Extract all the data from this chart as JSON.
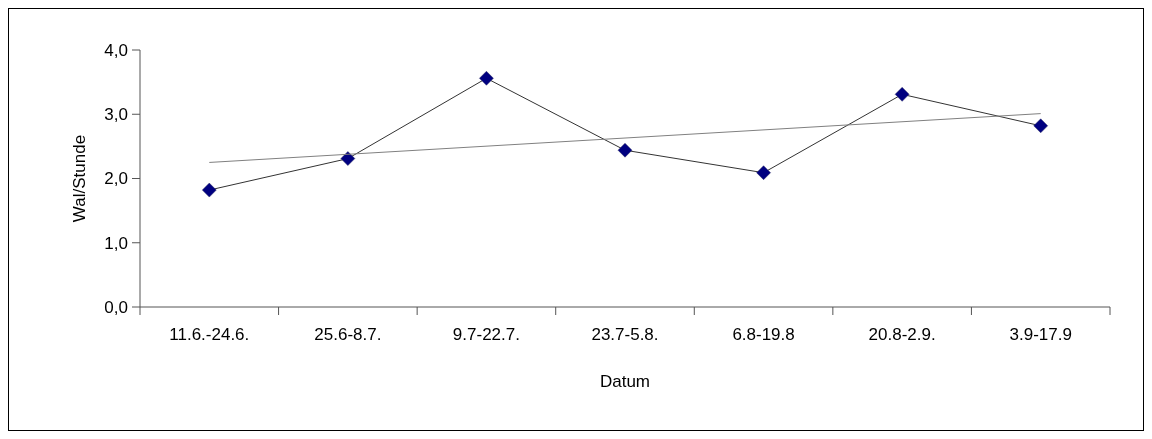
{
  "chart_data": {
    "type": "line",
    "xlabel": "Datum",
    "ylabel": "Wal/Stunde",
    "categories": [
      "11.6.-24.6.",
      "25.6-8.7.",
      "9.7-22.7.",
      "23.7-5.8.",
      "6.8-19.8",
      "20.8-2.9.",
      "3.9-17.9"
    ],
    "series": [
      {
        "color": "#000080",
        "marker": "diamond",
        "values": [
          1.82,
          2.31,
          3.56,
          2.44,
          2.09,
          3.31,
          2.82
        ]
      },
      {
        "color": "#808080",
        "marker": "none",
        "x": [
          "11.6.-24.6.",
          "3.9-17.9"
        ],
        "values": [
          2.25,
          3.01
        ]
      }
    ],
    "ylim": [
      0,
      4
    ],
    "yticks": [
      {
        "value": 0,
        "label": "0,0"
      },
      {
        "value": 1,
        "label": "1,0"
      },
      {
        "value": 2,
        "label": "2,0"
      },
      {
        "value": 3,
        "label": "3,0"
      },
      {
        "value": 4,
        "label": "4,0"
      }
    ],
    "grid": false
  }
}
